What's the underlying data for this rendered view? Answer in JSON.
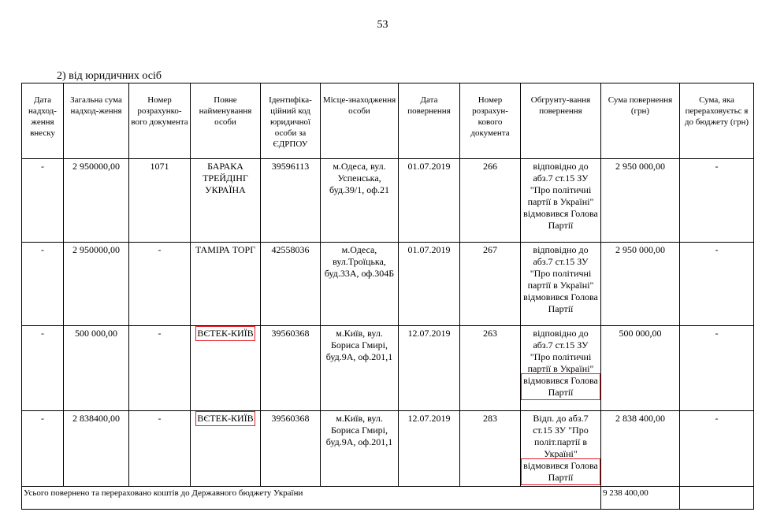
{
  "page_number": "53",
  "section_title": "2) від юридичних осіб",
  "headers": [
    "Дата надход-ження внеску",
    "Загальна сума надход-ження",
    "Номер розрахунко-вого документа",
    "Повне найменування особи",
    "Ідентифіка-ційний код юридичної особи за ЄДРПОУ",
    "Місце-знаходження особи",
    "Дата повернення",
    "Номер розрахун-кового документа",
    "Обгрунту-вання повернення",
    "Сума повернення (грн)",
    "Сума, яка перераховуєтьс я до бюджету (грн)"
  ],
  "rows": [
    {
      "date": "-",
      "total": "2 950000,00",
      "doc": "1071",
      "name": "БАРАКА ТРЕЙДІНГ УКРАЇНА",
      "code": "39596113",
      "address": "м.Одеса, вул. Успенська, буд.39/1, оф.21",
      "return_date": "01.07.2019",
      "return_doc": "266",
      "reason": "відповідно до абз.7 ст.15 ЗУ \"Про політичні партії в Україні\" відмовився Голова Партії",
      "reason_tail": "",
      "amount": "2 950 000,00",
      "budget": "-"
    },
    {
      "date": "-",
      "total": "2 950000,00",
      "doc": "-",
      "name": "ТАМІРА ТОРГ",
      "code": "42558036",
      "address": "м.Одеса, вул.Троїцька, буд.33А, оф.304Б",
      "return_date": "01.07.2019",
      "return_doc": "267",
      "reason": "відповідно до абз.7 ст.15 ЗУ \"Про політичні партії в Україні\" відмовився Голова Партії",
      "reason_tail": "",
      "amount": "2 950 000,00",
      "budget": "-"
    },
    {
      "date": "-",
      "total": "500 000,00",
      "doc": "-",
      "name": "ВЄТЕК-КИЇВ",
      "code": "39560368",
      "address": "м.Київ, вул. Бориса Гмирі, буд.9А, оф.201,1",
      "return_date": "12.07.2019",
      "return_doc": "263",
      "reason": "відповідно до абз.7 ст.15 ЗУ \"Про політичні партії в Україні\"",
      "reason_tail": "відмовився Голова Партії",
      "amount": "500 000,00",
      "budget": "-"
    },
    {
      "date": "-",
      "total": "2 838400,00",
      "doc": "-",
      "name": "ВЄТЕК-КИЇВ",
      "code": "39560368",
      "address": "м.Київ, вул. Бориса Гмирі, буд.9А, оф.201,1",
      "return_date": "12.07.2019",
      "return_doc": "283",
      "reason": "Відп. до абз.7 ст.15 ЗУ \"Про політ.партії в Україні\"",
      "reason_tail": "відмовився Голова Партії",
      "amount": "2 838 400,00",
      "budget": "-"
    }
  ],
  "highlight_color": "#e0202a",
  "total_row": {
    "label": "Усього повернено та перераховано коштів до Державного бюджету України",
    "amount": "9 238 400,00",
    "budget": ""
  }
}
